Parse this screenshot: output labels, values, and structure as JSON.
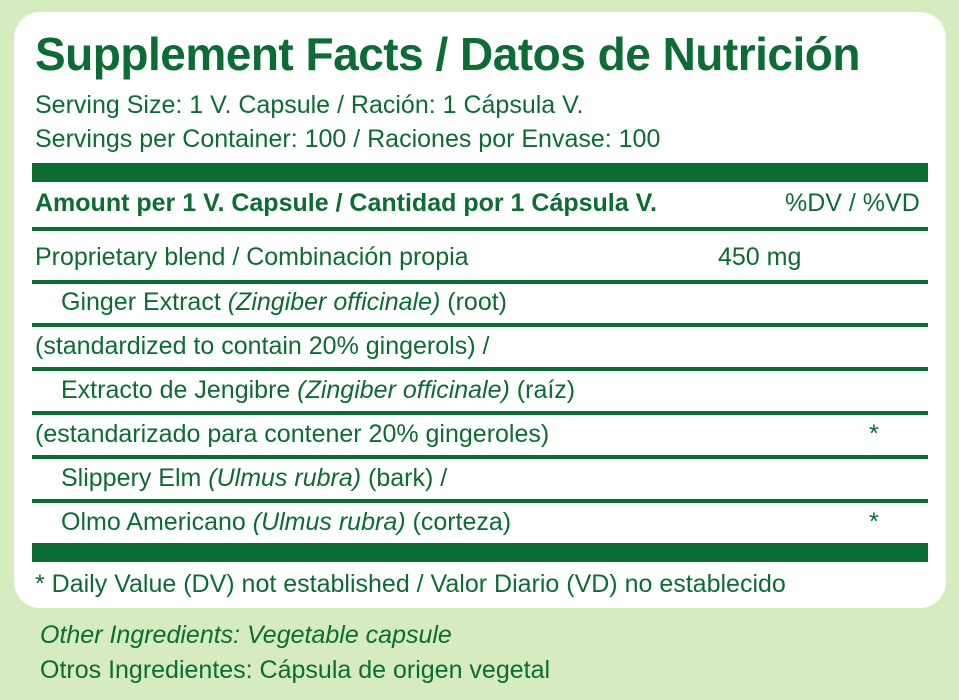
{
  "title": "Supplement Facts / Datos de Nutrición",
  "serving_size": "Serving Size: 1 V. Capsule / Ración: 1 Cápsula V.",
  "servings_per_container": "Servings per Container: 100 / Raciones por Envase: 100",
  "header": {
    "amount_label": "Amount per 1 V. Capsule / Cantidad por 1 Cápsula V.",
    "dv_label": "%DV / %VD"
  },
  "blend": {
    "label": "Proprietary blend / Combinación propia",
    "amount": "450 mg"
  },
  "ingredients": {
    "ginger_en_name": "Ginger Extract ",
    "ginger_en_latin": "(Zingiber officinale)",
    "ginger_en_part": " (root)",
    "ginger_std_en": "(standardized to contain 20% gingerols) /",
    "ginger_es_name": "Extracto de Jengibre ",
    "ginger_es_latin": "(Zingiber officinale)",
    "ginger_es_part": " (raíz)",
    "ginger_std_es": "(estandarizado para contener 20% gingeroles)",
    "ginger_dv": "*",
    "elm_en_name": "Slippery Elm ",
    "elm_en_latin": "(Ulmus rubra)",
    "elm_en_part": " (bark) /",
    "elm_es_name": "Olmo Americano ",
    "elm_es_latin": "(Ulmus rubra)",
    "elm_es_part": " (corteza)",
    "elm_dv": "*"
  },
  "footnote": "* Daily Value (DV) not established / Valor Diario (VD) no establecido",
  "other_ingredients_en": "Other Ingredients: Vegetable capsule",
  "other_ingredients_es": "Otros Ingredientes: Cápsula de origen vegetal",
  "colors": {
    "green": "#0d6b34",
    "background": "#d6ebbe",
    "panel": "#ffffff"
  }
}
